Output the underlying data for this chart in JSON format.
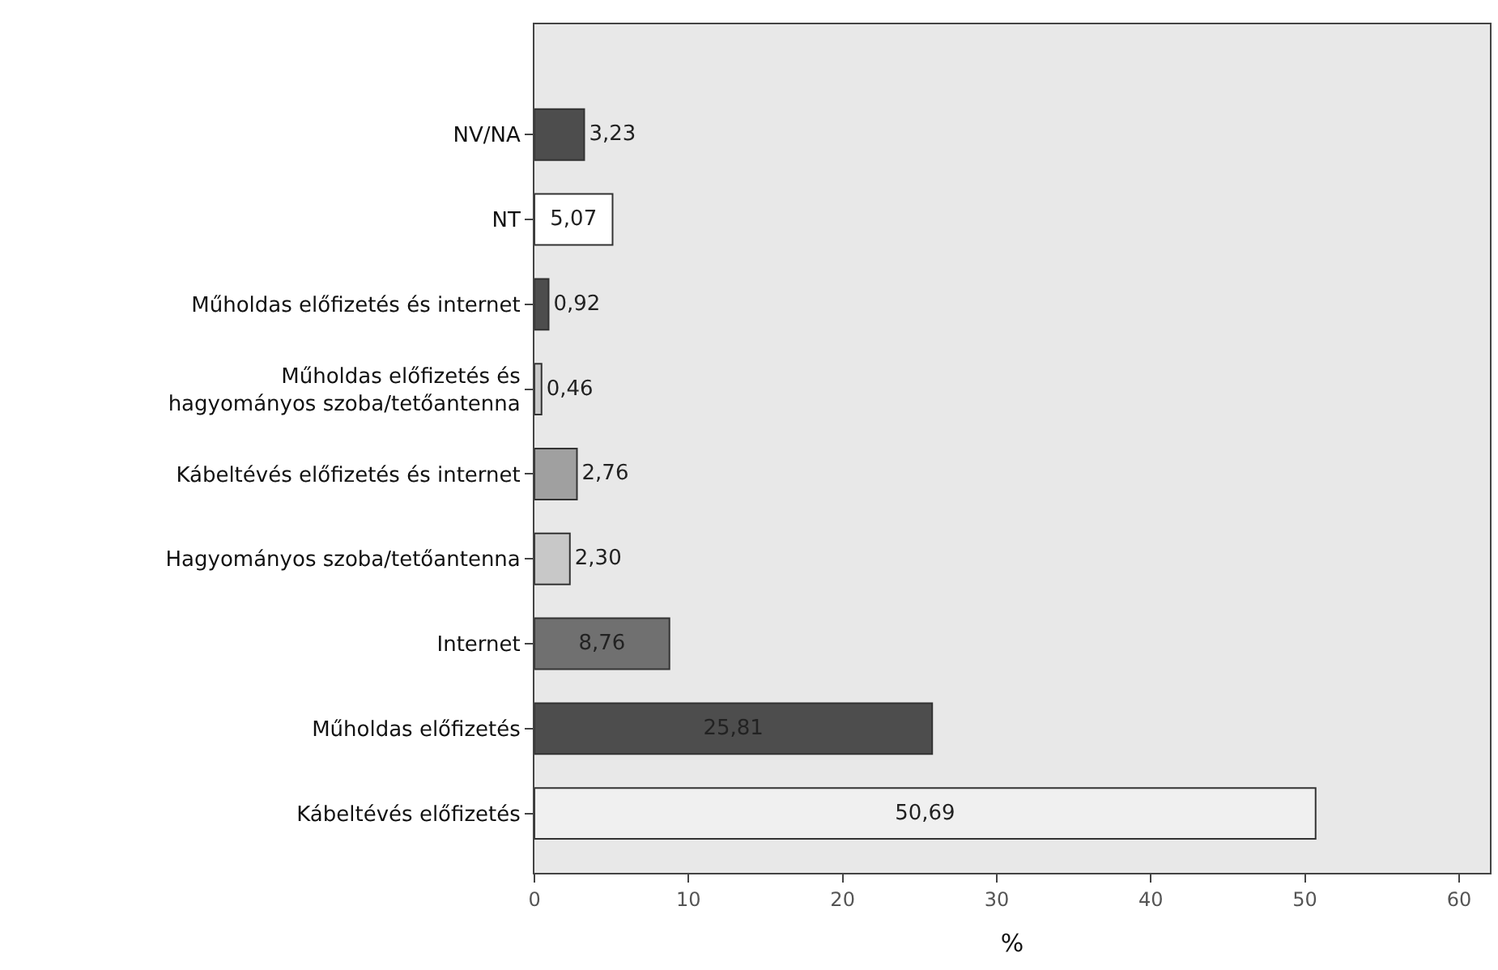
{
  "chart_data": {
    "type": "bar",
    "orientation": "horizontal",
    "xlabel": "%",
    "categories": [
      "NV/NA",
      "NT",
      "Műholdas előfizetés és internet",
      "Műholdas előfizetés és\nhagyományos szoba/tetőantenna",
      "Kábeltévés előfizetés és internet",
      "Hagyományos szoba/tetőantenna",
      "Internet",
      "Műholdas előfizetés",
      "Kábeltévés előfizetés"
    ],
    "values": [
      3.23,
      5.07,
      0.92,
      0.46,
      2.76,
      2.3,
      8.76,
      25.81,
      50.69
    ],
    "value_labels": [
      "3,23",
      "5,07",
      "0,92",
      "0,46",
      "2,76",
      "2,30",
      "8,76",
      "25,81",
      "50,69"
    ],
    "colors": [
      "#4d4d4d",
      "#ffffff",
      "#4d4d4d",
      "#c8c8c8",
      "#a0a0a0",
      "#c8c8c8",
      "#707070",
      "#4d4d4d",
      "#f0f0f0"
    ],
    "xlim": [
      0,
      62
    ],
    "xticks": [
      0,
      10,
      20,
      30,
      40,
      50,
      60
    ],
    "grid": false,
    "legend": false
  }
}
